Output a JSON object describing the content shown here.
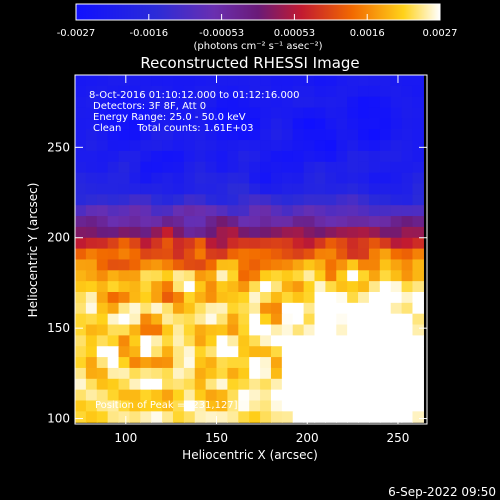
{
  "chart_data": {
    "type": "heatmap",
    "title": "Reconstructed RHESSI Image",
    "xlabel": "Heliocentric X (arcsec)",
    "ylabel": "Heliocentric Y (arcsec)",
    "xlim": [
      72,
      266
    ],
    "ylim": [
      97,
      290
    ],
    "xticks": [
      100,
      150,
      200,
      250
    ],
    "yticks": [
      100,
      150,
      200,
      250
    ],
    "annotations": [
      "8-Oct-2016 01:10:12.000 to 01:12:16.000",
      "Detectors: 3F 8F, Att 0",
      "Energy Range: 25.0 - 50.0 keV",
      "Clean     Total counts: 1.61E+03"
    ],
    "peak_label": "Position of Peak = [231,127]",
    "peak": [
      231,
      127
    ],
    "colorbar": {
      "min": -0.0027,
      "max": 0.0027,
      "ticks": [
        "-0.0027",
        "-0.0016",
        "-0.00053",
        "0.00053",
        "0.0016",
        "0.0027"
      ],
      "unit_label": "(photons cm⁻² s⁻¹ asec⁻²)",
      "colormap": "blue-violet-red-yellow-white"
    },
    "grid": {
      "nx": 32,
      "ny": 32,
      "cell_arcsec": 6,
      "structure": "negative (blue/violet) ring pattern in upper half, positive (red-yellow-white) ring pattern in lower half, brightest near lower centre"
    }
  },
  "footer": {
    "date": "6-Sep-2022 09:50"
  }
}
